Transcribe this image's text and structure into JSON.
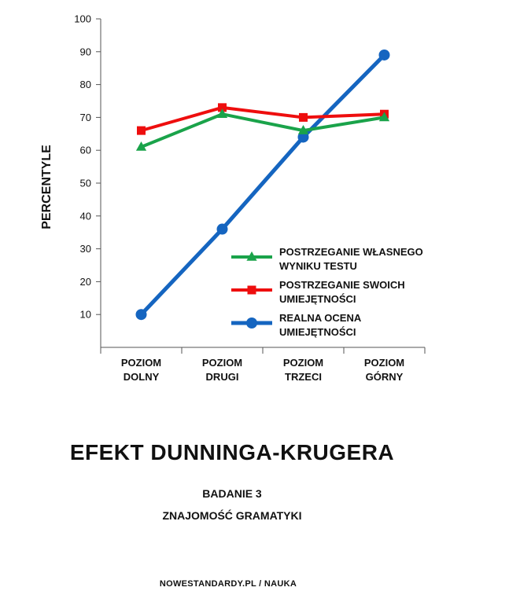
{
  "chart_data": {
    "type": "line",
    "categories": [
      "POZIOM\nDOLNY",
      "POZIOM\nDRUGI",
      "POZIOM\nTRZECI",
      "POZIOM\nGÓRNY"
    ],
    "ylabel": "PERCENTYLE",
    "ylim": [
      0,
      100
    ],
    "yticks": [
      10,
      20,
      30,
      40,
      50,
      60,
      70,
      80,
      90,
      100
    ],
    "grid": false,
    "legend_position": "bottom-right",
    "series": [
      {
        "name": "POSTRZEGANIE WŁASNEGO\nWYNIKU TESTU",
        "values": [
          61,
          71,
          66,
          70
        ],
        "color": "#1aa34a",
        "marker": "triangle"
      },
      {
        "name": "POSTRZEGANIE SWOICH\nUMIEJĘTNOŚCI",
        "values": [
          66,
          73,
          70,
          71
        ],
        "color": "#ee0e0e",
        "marker": "square"
      },
      {
        "name": "REALNA OCENA\nUMIEJĘTNOŚCI",
        "values": [
          10,
          36,
          64,
          89
        ],
        "color": "#1565c0",
        "marker": "circle"
      }
    ]
  },
  "texts": {
    "title": "EFEKT DUNNINGA-KRUGERA",
    "subtitle_1": "BADANIE 3",
    "subtitle_2": "ZNAJOMOŚĆ GRAMATYKI",
    "source": "NOWESTANDARDY.PL / NAUKA"
  }
}
